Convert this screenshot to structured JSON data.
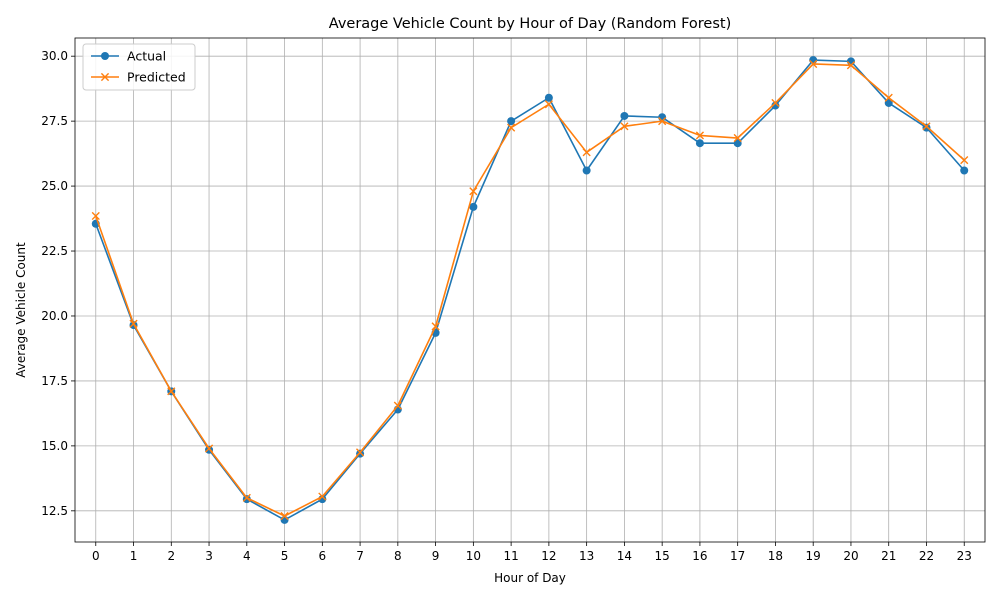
{
  "colors": {
    "actual": "#1f77b4",
    "predicted": "#ff7f0e",
    "grid": "#b0b0b0",
    "axis": "#000000"
  },
  "chart_data": {
    "type": "line",
    "title": "Average Vehicle Count by Hour of Day (Random Forest)",
    "xlabel": "Hour of Day",
    "ylabel": "Average Vehicle Count",
    "x": [
      0,
      1,
      2,
      3,
      4,
      5,
      6,
      7,
      8,
      9,
      10,
      11,
      12,
      13,
      14,
      15,
      16,
      17,
      18,
      19,
      20,
      21,
      22,
      23
    ],
    "xlim": [
      -0.55,
      23.55
    ],
    "ylim": [
      11.3,
      30.7
    ],
    "yticks": [
      12.5,
      15.0,
      17.5,
      20.0,
      22.5,
      25.0,
      27.5,
      30.0
    ],
    "ytick_labels": [
      "12.5",
      "15.0",
      "17.5",
      "20.0",
      "22.5",
      "25.0",
      "27.5",
      "30.0"
    ],
    "grid": true,
    "legend_position": "top-left",
    "series": [
      {
        "name": "Actual",
        "marker": "circle",
        "color": "#1f77b4",
        "values": [
          23.55,
          19.65,
          17.1,
          14.85,
          12.95,
          12.15,
          12.95,
          14.7,
          16.4,
          19.35,
          24.2,
          27.5,
          28.4,
          25.6,
          27.7,
          27.65,
          26.65,
          26.65,
          28.1,
          29.85,
          29.8,
          28.2,
          27.25,
          25.6
        ]
      },
      {
        "name": "Predicted",
        "marker": "x",
        "color": "#ff7f0e",
        "values": [
          23.85,
          19.7,
          17.1,
          14.9,
          13.0,
          12.3,
          13.05,
          14.75,
          16.55,
          19.6,
          24.8,
          27.25,
          28.15,
          26.3,
          27.3,
          27.5,
          26.95,
          26.85,
          28.2,
          29.7,
          29.65,
          28.4,
          27.3,
          26.0
        ]
      }
    ]
  }
}
